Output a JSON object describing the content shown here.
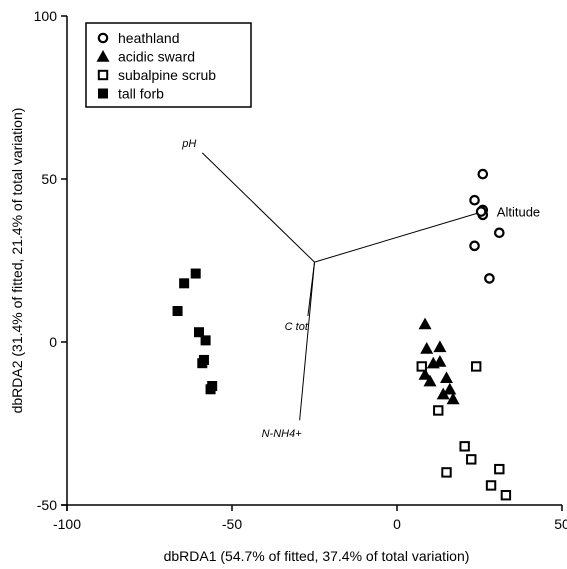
{
  "chart_data": {
    "type": "scatter",
    "xlabel": "dbRDA1 (54.7% of fitted, 37.4% of total variation)",
    "ylabel": "dbRDA2 (31.4% of fitted, 21.4% of total variation)",
    "xlim": [
      -100,
      50
    ],
    "ylim": [
      -50,
      100
    ],
    "xticks": [
      -100,
      -50,
      0,
      50
    ],
    "yticks": [
      -50,
      0,
      50,
      100
    ],
    "legend_position": "top-left",
    "grid": false,
    "series": [
      {
        "name": "heathland",
        "marker": "open-circle",
        "points": [
          [
            23.5,
            43.5
          ],
          [
            26,
            51.5
          ],
          [
            26,
            40.5
          ],
          [
            26,
            39
          ],
          [
            25.5,
            40
          ],
          [
            31,
            33.5
          ],
          [
            23.5,
            29.5
          ],
          [
            28,
            19.5
          ]
        ]
      },
      {
        "name": "acidic sward",
        "marker": "filled-triangle",
        "points": [
          [
            8.5,
            5.5
          ],
          [
            9,
            -2
          ],
          [
            13,
            -1.5
          ],
          [
            13,
            -6
          ],
          [
            11,
            -6.5
          ],
          [
            8.5,
            -10
          ],
          [
            10,
            -12
          ],
          [
            15,
            -11
          ],
          [
            16,
            -14.5
          ],
          [
            14,
            -16
          ],
          [
            17,
            -17.5
          ]
        ]
      },
      {
        "name": "subalpine scrub",
        "marker": "open-square",
        "points": [
          [
            7.5,
            -7.5
          ],
          [
            24,
            -7.5
          ],
          [
            12.5,
            -21
          ],
          [
            20.5,
            -32
          ],
          [
            22.5,
            -36
          ],
          [
            15,
            -40
          ],
          [
            31,
            -39
          ],
          [
            28.5,
            -44
          ],
          [
            33,
            -47
          ]
        ]
      },
      {
        "name": "tall forb",
        "marker": "filled-square",
        "points": [
          [
            -61,
            21
          ],
          [
            -64.5,
            18
          ],
          [
            -66.5,
            9.5
          ],
          [
            -60,
            3
          ],
          [
            -58,
            0.5
          ],
          [
            -58.5,
            -5.5
          ],
          [
            -59,
            -6.5
          ],
          [
            -56,
            -13.5
          ],
          [
            -56.5,
            -14.5
          ]
        ]
      }
    ],
    "vectors": {
      "origin": [
        -25,
        24.5
      ],
      "items": [
        {
          "label": "pH",
          "style": "italic",
          "end": [
            -59,
            58
          ]
        },
        {
          "label": "Altitude",
          "style": "upright",
          "end": [
            26,
            40
          ]
        },
        {
          "label": "C tot",
          "style": "italic",
          "end": [
            -27,
            8
          ]
        },
        {
          "label": "N-NH4+",
          "style": "italic",
          "end": [
            -29.5,
            -24
          ]
        }
      ]
    }
  }
}
